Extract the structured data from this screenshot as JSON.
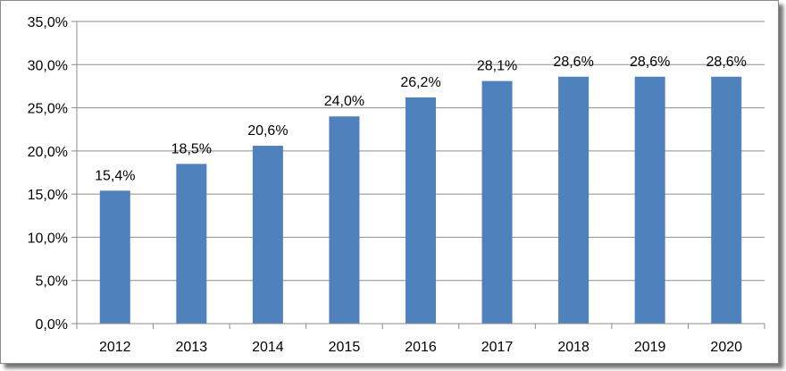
{
  "chart_data": {
    "type": "bar",
    "categories": [
      "2012",
      "2013",
      "2014",
      "2015",
      "2016",
      "2017",
      "2018",
      "2019",
      "2020"
    ],
    "values": [
      15.4,
      18.5,
      20.6,
      24.0,
      26.2,
      28.1,
      28.6,
      28.6,
      28.6
    ],
    "data_labels": [
      "15,4%",
      "18,5%",
      "20,6%",
      "24,0%",
      "26,2%",
      "28,1%",
      "28,6%",
      "28,6%",
      "28,6%"
    ],
    "y_ticks": [
      0,
      5,
      10,
      15,
      20,
      25,
      30,
      35
    ],
    "y_tick_labels": [
      "0,0%",
      "5,0%",
      "10,0%",
      "15,0%",
      "20,0%",
      "25,0%",
      "30,0%",
      "35,0%"
    ],
    "ylim": [
      0,
      35
    ],
    "grid": true,
    "legend": "none",
    "bar_color": "#4f81bd"
  }
}
